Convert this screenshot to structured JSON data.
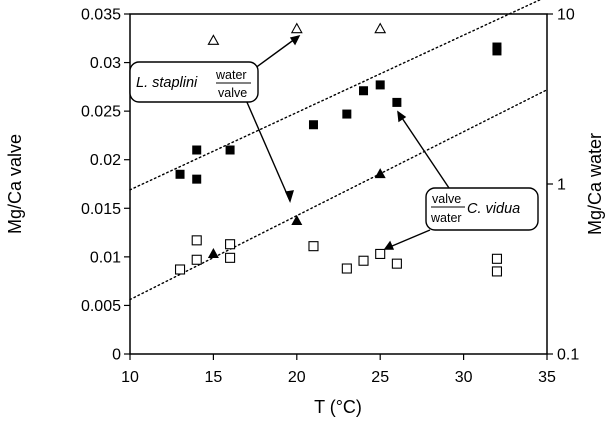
{
  "chart_data": {
    "type": "scatter",
    "xlabel": "T (°C)",
    "ylabel": "Mg/Ca valve",
    "y2label": "Mg/Ca water",
    "xlim": [
      10,
      35
    ],
    "ylim": [
      0,
      0.035
    ],
    "y2lim": [
      0.1,
      10
    ],
    "y2scale": "log",
    "grid": false,
    "x_ticks": [
      "10",
      "15",
      "20",
      "25",
      "30",
      "35"
    ],
    "y_ticks": [
      "0",
      "0.005",
      "0.01",
      "0.015",
      "0.02",
      "0.025",
      "0.03",
      "0.035"
    ],
    "y2_ticks": [
      "0.1",
      "1",
      "10"
    ],
    "series": [
      {
        "marker": "filled-square",
        "axis": "left",
        "color": "#000000",
        "points": [
          [
            13,
            0.0185
          ],
          [
            14,
            0.021
          ],
          [
            14,
            0.018
          ],
          [
            16,
            0.021
          ],
          [
            21,
            0.0236
          ],
          [
            23,
            0.0247
          ],
          [
            24,
            0.0271
          ],
          [
            25,
            0.0277
          ],
          [
            26,
            0.0259
          ],
          [
            32,
            0.0316
          ],
          [
            32,
            0.0312
          ]
        ]
      },
      {
        "marker": "open-square",
        "axis": "left",
        "color": "#000000",
        "points": [
          [
            13,
            0.0087
          ],
          [
            14,
            0.0117
          ],
          [
            14,
            0.0097
          ],
          [
            16,
            0.0113
          ],
          [
            16,
            0.0099
          ],
          [
            21,
            0.0111
          ],
          [
            23,
            0.0088
          ],
          [
            24,
            0.0096
          ],
          [
            25,
            0.0103
          ],
          [
            26,
            0.0093
          ],
          [
            32,
            0.0098
          ],
          [
            32,
            0.0085
          ]
        ]
      },
      {
        "marker": "open-triangle",
        "axis": "right",
        "color": "#000000",
        "points": [
          [
            15,
            7.0
          ],
          [
            20,
            8.2
          ],
          [
            25,
            8.2
          ]
        ]
      },
      {
        "marker": "filled-triangle",
        "axis": "right",
        "color": "#000000",
        "points": [
          [
            15,
            0.39
          ],
          [
            20,
            0.61
          ],
          [
            25,
            1.15
          ]
        ]
      }
    ],
    "trendlines": [
      {
        "axis": "left",
        "style": "dotted",
        "x": [
          10,
          35
        ],
        "y": [
          0.0169,
          0.0368
        ]
      },
      {
        "axis": "left",
        "style": "dotted",
        "x": [
          10,
          35
        ],
        "y": [
          0.0056,
          0.0272
        ]
      }
    ],
    "annotations": {
      "left_callout": {
        "text": "L. staplini",
        "frac_top": "water",
        "frac_bottom": "valve"
      },
      "right_callout": {
        "frac_top": "valve",
        "frac_bottom": "water",
        "text": "C. vidua"
      }
    }
  }
}
